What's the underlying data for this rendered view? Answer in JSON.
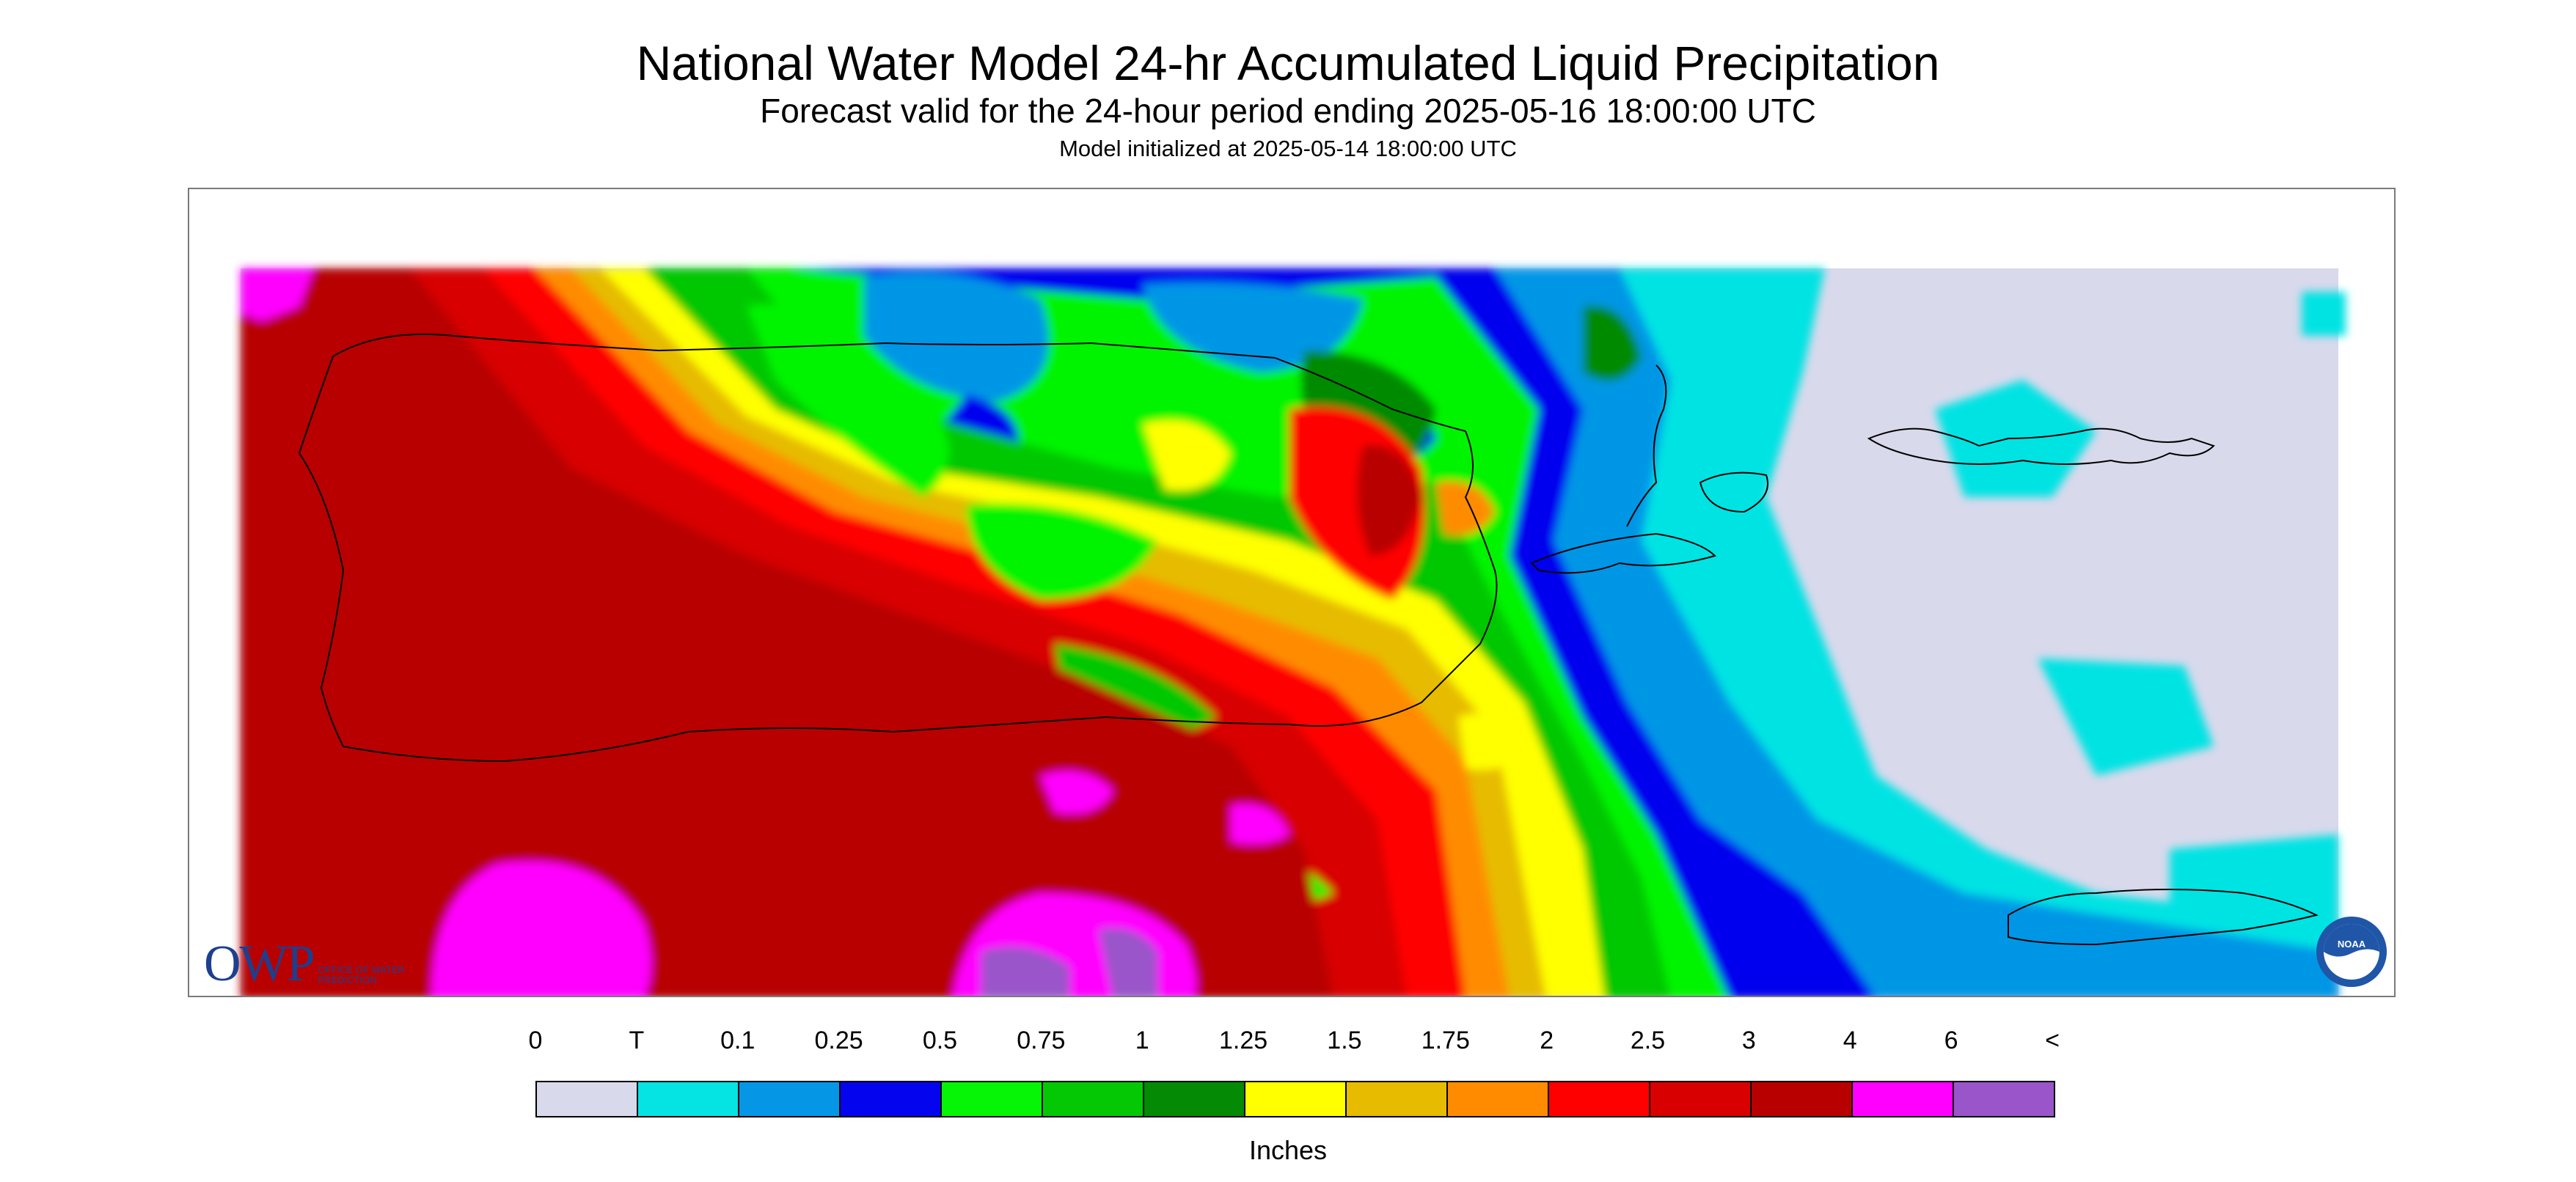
{
  "titles": {
    "main": "National Water Model 24-hr Accumulated Liquid Precipitation",
    "sub": "Forecast valid for the 24-hour period ending 2025-05-16 18:00:00 UTC",
    "init": "Model initialized at 2025-05-14 18:00:00 UTC"
  },
  "legend": {
    "units": "Inches",
    "labels": [
      "0",
      "T",
      "0.1",
      "0.25",
      "0.5",
      "0.75",
      "1",
      "1.25",
      "1.5",
      "1.75",
      "2",
      "2.5",
      "3",
      "4",
      "6",
      "<"
    ],
    "colors": [
      "#d9d9ec",
      "#05e3e3",
      "#0696e6",
      "#0404ee",
      "#06f406",
      "#04c804",
      "#048a04",
      "#ffff00",
      "#e6bb00",
      "#ff8c00",
      "#ff0000",
      "#d80000",
      "#b80000",
      "#ff00ff",
      "#9955c9"
    ]
  },
  "logos": {
    "owp_mark": "OWP",
    "owp_text": "OFFICE OF WATER PREDICTION",
    "noaa_text": "NOAA"
  },
  "map": {
    "region": "Puerto Rico and Virgin Islands",
    "field_colors": {
      "background": "#d9d9ec",
      "trace": "#05e3e3",
      "light": "#0696e6",
      "low": "#0404ee",
      "med_green": "#06f406",
      "green": "#04c804",
      "dark_green": "#048a04",
      "yellow": "#ffff00",
      "gold": "#e6bb00",
      "orange": "#ff8c00",
      "red": "#ff0000",
      "dark_red": "#d80000",
      "darker_red": "#b80000",
      "magenta": "#ff00ff",
      "purple": "#9955c9"
    }
  }
}
